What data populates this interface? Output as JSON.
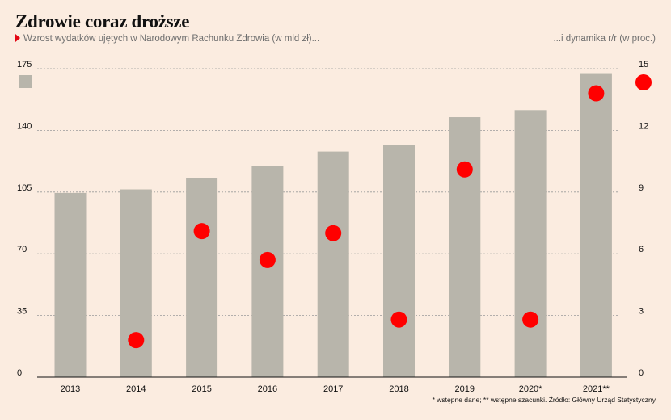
{
  "header": {
    "title": "Zdrowie coraz droższe",
    "subtitle_left": "Wzrost wydatków ujętych w Narodowym Rachunku Zdrowia (w mld zł)...",
    "subtitle_right": "...i dynamika r/r (w proc.)"
  },
  "footnote": "* wstępne dane; ** wstępne szacunki. Źródło: Główny Urząd Statystyczny",
  "colors": {
    "bar": "#b8b5ab",
    "dot": "#ff0000",
    "background": "#fbece0",
    "grid": "#9a9a9a"
  },
  "chart_data": {
    "type": "bar",
    "categories": [
      "2013",
      "2014",
      "2015",
      "2016",
      "2017",
      "2018",
      "2019",
      "2020*",
      "2021**"
    ],
    "series": [
      {
        "name": "",
        "type": "bar",
        "axis": "left",
        "values": [
          104.5,
          106.5,
          113,
          120,
          128,
          131.5,
          147.5,
          151.5,
          172
        ]
      },
      {
        "name": "",
        "type": "scatter",
        "axis": "right",
        "values": [
          null,
          1.8,
          7.1,
          5.7,
          7.0,
          2.8,
          10.1,
          2.8,
          13.8
        ]
      }
    ],
    "left_axis": {
      "ylim": [
        0,
        175
      ],
      "ticks": [
        "0",
        "35",
        "70",
        "105",
        "140",
        "175"
      ]
    },
    "right_axis": {
      "ylim": [
        0,
        15
      ],
      "ticks": [
        "0",
        "3",
        "6",
        "9",
        "12",
        "15"
      ]
    },
    "grid": true,
    "legend_placement": "top-edges"
  }
}
